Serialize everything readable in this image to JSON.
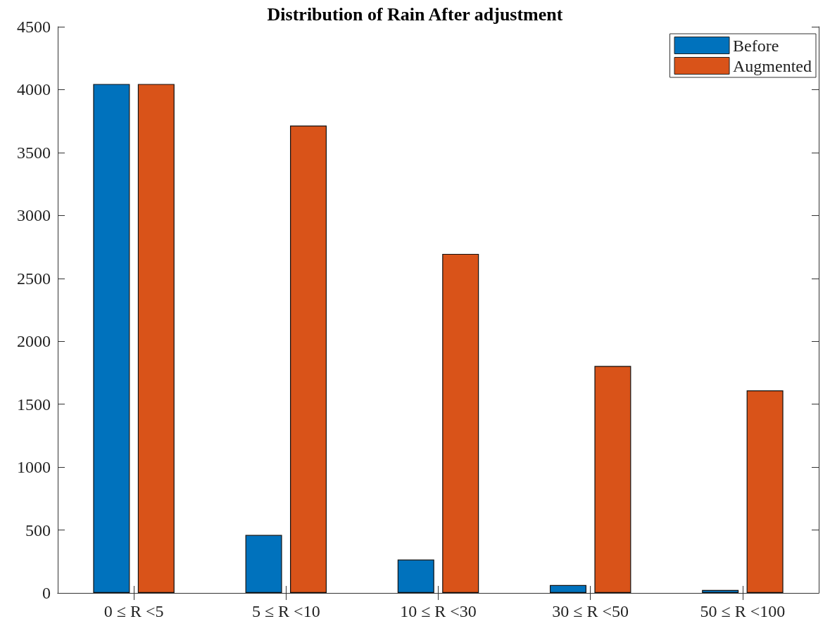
{
  "chart_data": {
    "type": "bar",
    "title": "Distribution of Rain After adjustment",
    "categories": [
      "0 ≤ R <5",
      "5 ≤ R <10",
      "10 ≤ R <30",
      "30 ≤ R <50",
      "50 ≤ R <100"
    ],
    "series": [
      {
        "name": "Before",
        "color": "#0072bd",
        "values": [
          4045,
          461,
          265,
          63,
          24
        ]
      },
      {
        "name": "Augmented",
        "color": "#d95319",
        "values": [
          4045,
          3715,
          2695,
          1804,
          1610
        ]
      }
    ],
    "ylim": [
      0,
      4500
    ],
    "yticks": [
      0,
      500,
      1000,
      1500,
      2000,
      2500,
      3000,
      3500,
      4000,
      4500
    ],
    "grid": false,
    "legend": "top right"
  }
}
